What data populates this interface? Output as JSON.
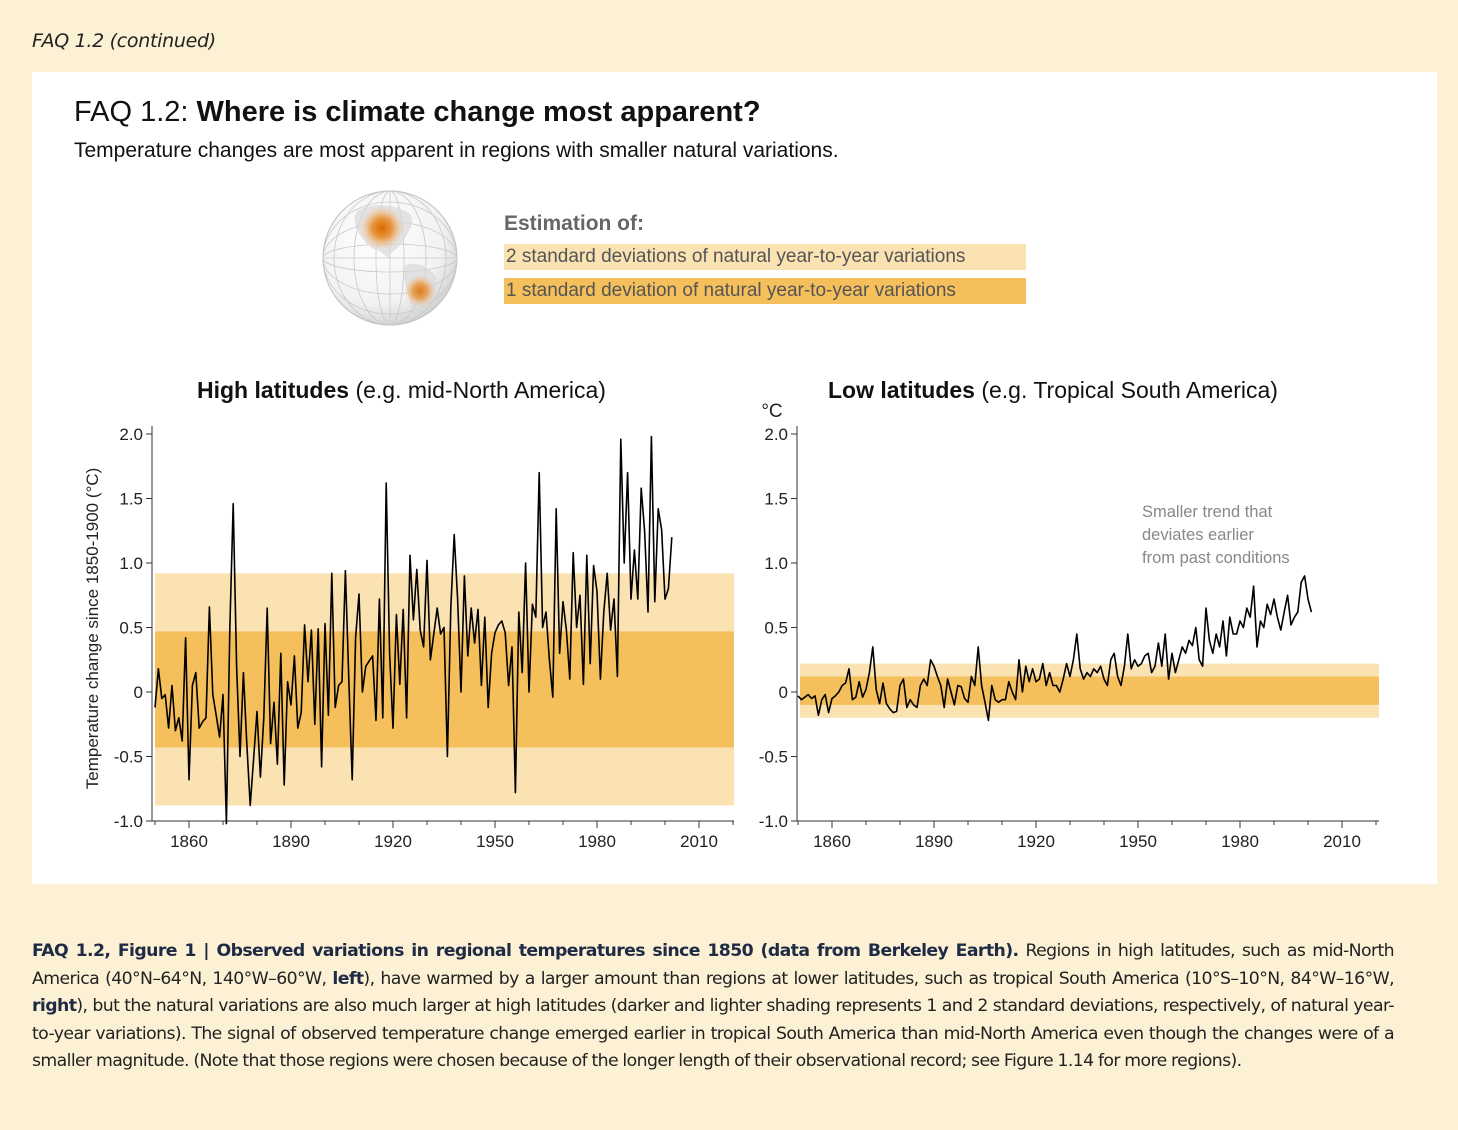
{
  "header_tag": "FAQ 1.2 (continued)",
  "title_prefix": "FAQ 1.2: ",
  "title_main": "Where is climate change most apparent?",
  "subtitle": "Temperature changes are most apparent in regions with smaller natural variations.",
  "legend": {
    "heading": "Estimation of:",
    "sd2_label": "2 standard deviations of natural year-to-year variations",
    "sd1_label": "1 standard deviation of natural year-to-year variations",
    "sd2_color": "#fbe2b3",
    "sd1_color": "#f5bf5c"
  },
  "colors": {
    "background": "#fdf1d5",
    "line": "#000000",
    "hotspot": "#e07a10"
  },
  "chart_data": [
    {
      "type": "line",
      "title_bold": "High latitudes",
      "title_rest": " (e.g. mid-North America)",
      "ylabel": "Temperature change since 1850-1900 (°C)",
      "unit_label": "",
      "ylim": [
        -1.0,
        2.0
      ],
      "xlim": [
        1850,
        2020
      ],
      "yticks": [
        2.0,
        1.5,
        1.0,
        0.5,
        0,
        -0.5,
        -1.0
      ],
      "ytick_labels": [
        "2.0",
        "1.5",
        "1.0",
        "0.5",
        "0",
        "-0.5",
        "-1.0"
      ],
      "xticks": [
        1860,
        1890,
        1920,
        1950,
        1980,
        2010
      ],
      "band_2sd": [
        -0.88,
        0.92
      ],
      "band_1sd": [
        -0.43,
        0.47
      ],
      "annotation": [],
      "series": [
        {
          "x_start": 1850,
          "values": [
            -0.12,
            0.18,
            -0.05,
            -0.02,
            -0.28,
            0.05,
            -0.3,
            -0.2,
            -0.38,
            0.42,
            -0.68,
            0.05,
            0.15,
            -0.28,
            -0.23,
            -0.2,
            0.66,
            -0.02,
            -0.18,
            -0.35,
            -0.02,
            -1.02,
            0.48,
            1.46,
            0.2,
            -0.5,
            0.15,
            -0.4,
            -0.88,
            -0.52,
            -0.15,
            -0.66,
            -0.2,
            0.65,
            -0.4,
            -0.08,
            -0.56,
            0.3,
            -0.72,
            0.08,
            -0.1,
            0.28,
            -0.28,
            -0.16,
            0.52,
            0.08,
            0.48,
            -0.25,
            0.49,
            -0.58,
            0.53,
            -0.18,
            0.92,
            -0.12,
            0.05,
            0.08,
            0.94,
            0.1,
            -0.68,
            0.42,
            0.76,
            0.0,
            0.2,
            0.24,
            0.28,
            -0.22,
            0.72,
            -0.2,
            1.62,
            0.3,
            -0.28,
            0.6,
            0.06,
            0.64,
            -0.2,
            1.06,
            0.56,
            0.95,
            0.48,
            0.35,
            1.02,
            0.25,
            0.45,
            0.65,
            0.45,
            0.5,
            -0.5,
            0.65,
            1.22,
            0.72,
            0.0,
            0.9,
            0.28,
            0.65,
            0.38,
            0.64,
            0.05,
            0.58,
            -0.12,
            0.3,
            0.46,
            0.52,
            0.55,
            0.46,
            0.05,
            0.35,
            -0.78,
            0.62,
            0.15,
            1.0,
            0.0,
            0.68,
            0.58,
            1.7,
            0.5,
            0.62,
            0.25,
            -0.04,
            1.42,
            0.3,
            0.7,
            0.48,
            0.1,
            1.08,
            0.5,
            0.75,
            0.06,
            1.06,
            0.22,
            0.98,
            0.78,
            0.1,
            0.62,
            0.92,
            0.48,
            0.72,
            0.12,
            1.96,
            1.0,
            1.7,
            0.72,
            1.1,
            0.72,
            1.58,
            1.25,
            0.62,
            1.98,
            0.7,
            1.42,
            1.26,
            0.72,
            0.8,
            1.2
          ]
        }
      ]
    },
    {
      "type": "line",
      "title_bold": "Low latitudes",
      "title_rest": " (e.g. Tropical South America)",
      "ylabel": "",
      "unit_label": "°C",
      "ylim": [
        -1.0,
        2.0
      ],
      "xlim": [
        1850,
        2020
      ],
      "yticks": [
        2.0,
        1.5,
        1.0,
        0.5,
        0,
        -0.5,
        -1.0
      ],
      "ytick_labels": [
        "2.0",
        "1.5",
        "1.0",
        "0.5",
        "0",
        "-0.5",
        "-1.0"
      ],
      "xticks": [
        1860,
        1890,
        1920,
        1950,
        1980,
        2010
      ],
      "band_2sd": [
        -0.2,
        0.22
      ],
      "band_1sd": [
        -0.1,
        0.12
      ],
      "annotation": [
        "Smaller trend that",
        "deviates earlier",
        "from past conditions"
      ],
      "series": [
        {
          "x_start": 1850,
          "values": [
            -0.03,
            -0.06,
            -0.04,
            -0.02,
            -0.05,
            -0.03,
            -0.18,
            -0.06,
            -0.02,
            -0.16,
            -0.05,
            -0.03,
            0.0,
            0.05,
            0.07,
            0.18,
            -0.06,
            -0.04,
            0.08,
            -0.04,
            0.02,
            0.15,
            0.35,
            0.02,
            -0.09,
            0.07,
            -0.09,
            -0.13,
            -0.16,
            -0.15,
            0.05,
            0.1,
            -0.12,
            -0.06,
            -0.1,
            -0.12,
            0.05,
            0.1,
            0.05,
            0.25,
            0.2,
            0.12,
            0.05,
            -0.12,
            0.1,
            0.0,
            -0.1,
            0.05,
            0.04,
            -0.05,
            -0.08,
            0.12,
            0.05,
            0.35,
            0.05,
            -0.08,
            -0.22,
            0.05,
            -0.06,
            -0.08,
            -0.06,
            -0.06,
            0.08,
            0.0,
            -0.06,
            0.25,
            0.0,
            0.2,
            0.08,
            0.18,
            0.08,
            0.1,
            0.22,
            0.05,
            0.15,
            0.05,
            0.05,
            0.0,
            0.1,
            0.22,
            0.12,
            0.25,
            0.45,
            0.18,
            0.1,
            0.15,
            0.12,
            0.18,
            0.15,
            0.2,
            0.1,
            0.05,
            0.25,
            0.3,
            0.12,
            0.05,
            0.2,
            0.45,
            0.18,
            0.25,
            0.2,
            0.22,
            0.28,
            0.3,
            0.15,
            0.2,
            0.38,
            0.2,
            0.45,
            0.1,
            0.3,
            0.15,
            0.25,
            0.35,
            0.3,
            0.4,
            0.36,
            0.5,
            0.25,
            0.2,
            0.65,
            0.4,
            0.3,
            0.45,
            0.35,
            0.55,
            0.28,
            0.58,
            0.45,
            0.45,
            0.55,
            0.5,
            0.65,
            0.58,
            0.82,
            0.35,
            0.55,
            0.5,
            0.68,
            0.6,
            0.72,
            0.58,
            0.48,
            0.62,
            0.75,
            0.52,
            0.58,
            0.62,
            0.85,
            0.9,
            0.72,
            0.62
          ]
        }
      ]
    }
  ],
  "caption": {
    "head": "FAQ 1.2, Figure 1 | Observed variations in regional temperatures since 1850 (data from Berkeley Earth).",
    "part1": " Regions in high latitudes, such as mid-North America (40°N–64°N, 140°W–60°W, ",
    "bold1": "left",
    "part2": "), have warmed by a larger amount than regions at lower latitudes, such as tropical South America (10°S–10°N, 84°W–16°W, ",
    "bold2": "right",
    "part3": "), but the natural variations are also much larger at high latitudes (darker and lighter shading represents 1 and 2 standard deviations, respectively, of natural year-to-year variations). The signal of observed temperature change emerged earlier in tropical South America than mid-North America even though the changes were of a smaller magnitude. (Note that those regions were chosen because of the longer length of their observational record; see Figure 1.14 for more regions)."
  }
}
